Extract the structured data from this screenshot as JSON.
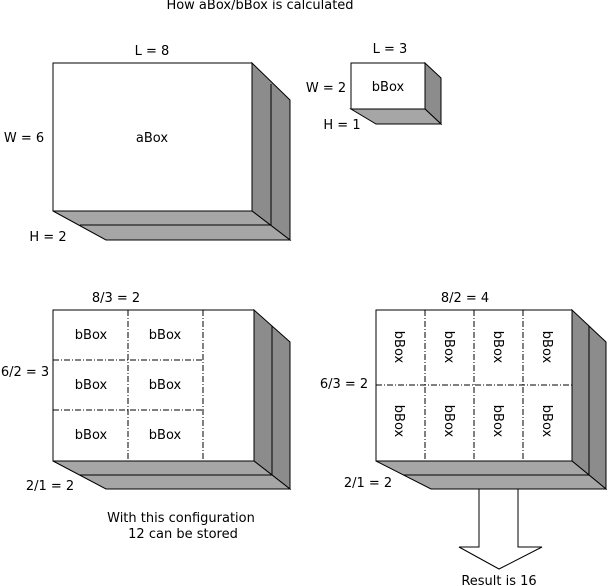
{
  "title": "How aBox/bBox is calculated",
  "abox": {
    "label": "aBox",
    "length_label": "L = 8",
    "width_label": "W = 6",
    "height_label": "H = 2"
  },
  "bbox": {
    "label": "bBox",
    "length_label": "L = 3",
    "width_label": "W = 2",
    "height_label": "H = 1"
  },
  "config_a": {
    "length_calc": "8/3 = 2",
    "width_calc": "6/2 = 3",
    "height_calc": "2/1 = 2",
    "cell_label": "bBox",
    "caption_line1": "With this configuration",
    "caption_line2": "12 can be stored"
  },
  "config_b": {
    "length_calc": "8/2 = 4",
    "width_calc": "6/3 = 2",
    "height_calc": "2/1 = 2",
    "cell_label": "bBox",
    "result": "Result is 16"
  },
  "colors": {
    "side_face": "#8c8c8c",
    "bottom_face": "#a6a6a6",
    "front_face": "#ffffff"
  }
}
